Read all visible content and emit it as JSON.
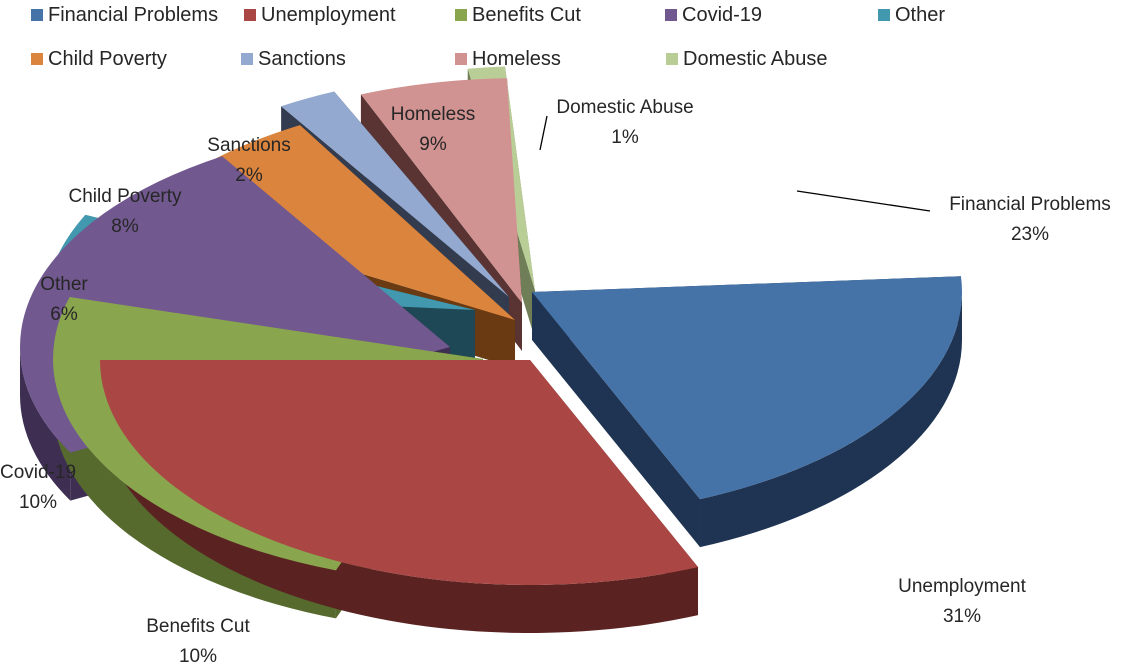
{
  "chart_data": {
    "type": "pie",
    "style": "3d-exploded",
    "legend_position": "top",
    "slices": [
      {
        "label": "Financial Problems",
        "value": 23,
        "percent_label": "23%",
        "color": "#4572A7",
        "shade": "#1F3452"
      },
      {
        "label": "Unemployment",
        "value": 31,
        "percent_label": "31%",
        "color": "#AA4643",
        "shade": "#5A2322"
      },
      {
        "label": "Benefits Cut",
        "value": 10,
        "percent_label": "10%",
        "color": "#89A54E",
        "shade": "#566A2E"
      },
      {
        "label": "Covid-19",
        "value": 10,
        "percent_label": "10%",
        "color": "#71588F",
        "shade": "#3E2F52"
      },
      {
        "label": "Other",
        "value": 6,
        "percent_label": "6%",
        "color": "#4198AF",
        "shade": "#1E4855"
      },
      {
        "label": "Child Poverty",
        "value": 8,
        "percent_label": "8%",
        "color": "#DB843D",
        "shade": "#6A3A12"
      },
      {
        "label": "Sanctions",
        "value": 2,
        "percent_label": "2%",
        "color": "#93A9CF",
        "shade": "#333C4E"
      },
      {
        "label": "Homeless",
        "value": 9,
        "percent_label": "9%",
        "color": "#D19392",
        "shade": "#5A3433"
      },
      {
        "label": "Domestic Abuse",
        "value": 1,
        "percent_label": "1%",
        "color": "#B9CD96",
        "shade": "#6F7E56"
      }
    ]
  }
}
